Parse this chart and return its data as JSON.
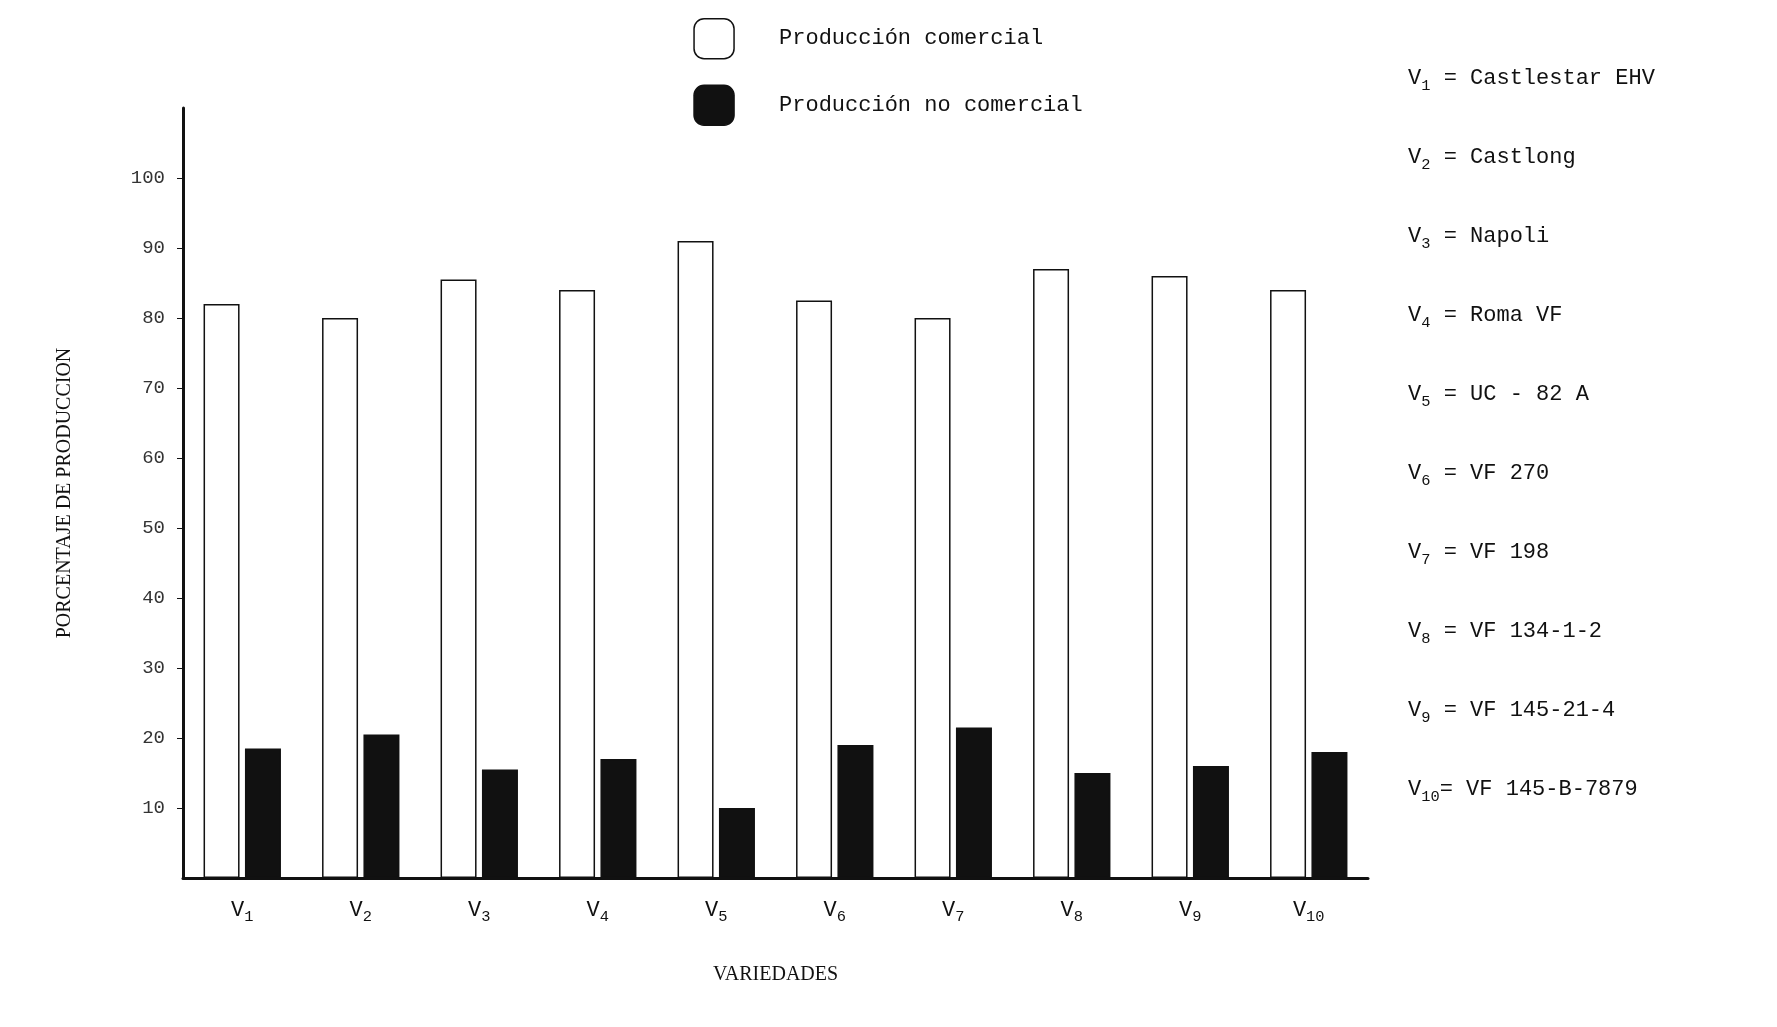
{
  "chart_data": {
    "type": "bar",
    "xlabel": "VARIEDADES",
    "ylabel": "PORCENTAJE DE PRODUCCION",
    "categories": [
      "V$_{1}$",
      "V$_{2}$",
      "V$_{3}$",
      "V$_{4}$",
      "V$_{5}$",
      "V$_{6}$",
      "V$_{7}$",
      "V$_{8}$",
      "V$_{9}$",
      "V$_{10}$"
    ],
    "series": [
      {
        "name": "Producción comercial",
        "color": "#ffffff",
        "values": [
          82,
          80,
          85.5,
          84,
          91,
          82.5,
          80,
          87,
          86,
          84
        ]
      },
      {
        "name": "Producción no comercial",
        "color": "#111111",
        "values": [
          18.5,
          20.5,
          15.5,
          17,
          10,
          19,
          21.5,
          15,
          16,
          18
        ]
      }
    ],
    "ylim": [
      0,
      110
    ],
    "yticks": [
      10,
      20,
      30,
      40,
      50,
      60,
      70,
      80,
      90,
      100
    ],
    "grid": false,
    "legend": "top",
    "annotations": [
      "V$_{1}$ = Castlestar EHV",
      "V$_{2}$ = Castlong",
      "V$_{3}$ = Napoli",
      "V$_{4}$ = Roma VF",
      "V$_{5}$ = UC - 82 A",
      "V$_{6}$ = VF 270",
      "V$_{7}$ = VF 198",
      "V$_{8}$ = VF 134-1-2",
      "V$_{9}$ = VF 145-21-4",
      "V$_{10}$= VF 145-B-7879"
    ]
  }
}
